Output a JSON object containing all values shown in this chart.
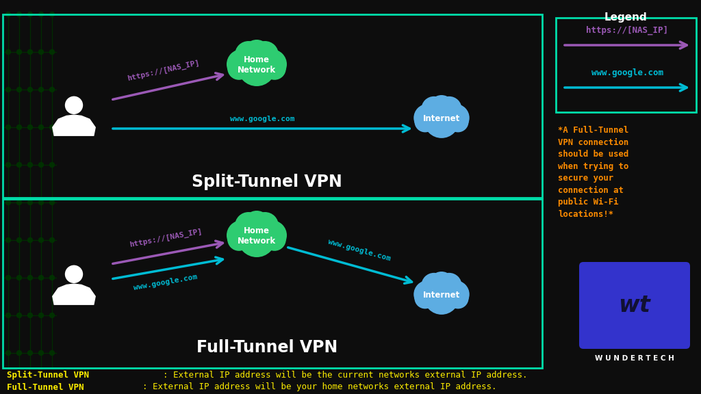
{
  "bg_color": "#0d0d0d",
  "border_color": "#00ddaa",
  "split_title": "Split-Tunnel VPN",
  "full_title": "Full-Tunnel VPN",
  "legend_title": "Legend",
  "legend_nas": "https://[NAS_IP]",
  "legend_google": "www.google.com",
  "note_text": "*A Full-Tunnel\nVPN connection\nshould be used\nwhen trying to\nsecure your\nconnection at\npublic Wi-Fi\nlocations!*",
  "bottom_text1_bold": "Split-Tunnel VPN",
  "bottom_text1_rest": ": External IP address will be the current networks external IP address.",
  "bottom_text2_bold": "Full-Tunnel VPN",
  "bottom_text2_rest": ": External IP address will be your home networks external IP address.",
  "purple_color": "#9b59b6",
  "cyan_color": "#00bcd4",
  "green_cloud_color": "#2ecc71",
  "blue_cloud_color": "#5dade2",
  "white_color": "#ffffff",
  "yellow_color": "#ffee00",
  "orange_color": "#ff8c00",
  "wundertech_color": "#3333cc",
  "circuit_color": "#003300"
}
